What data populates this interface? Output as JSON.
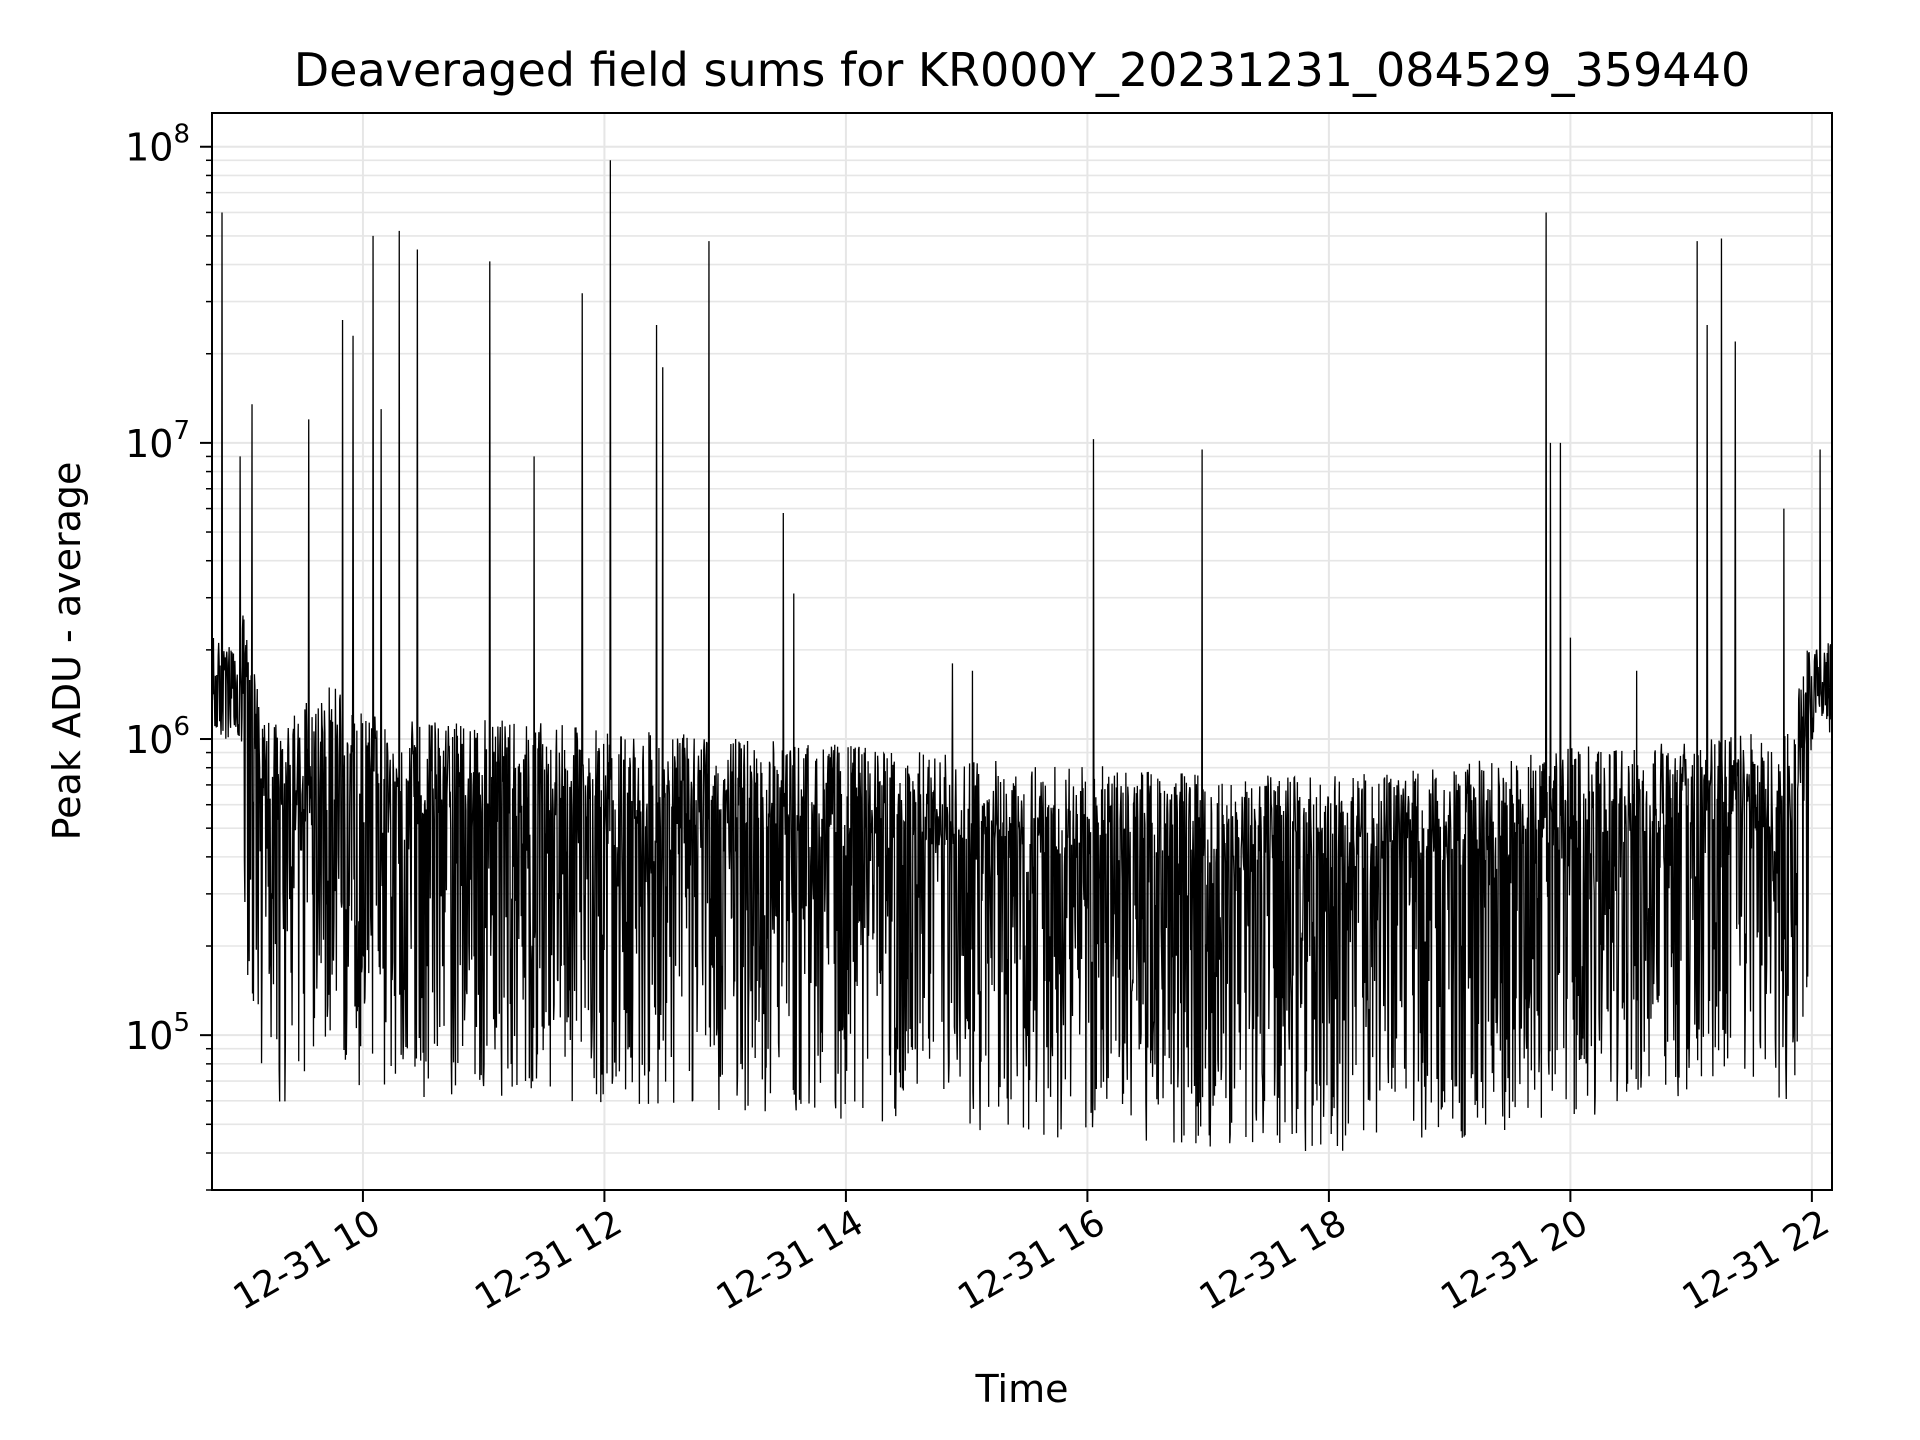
{
  "chart_data": {
    "type": "line",
    "title": "Deaveraged field sums for KR000Y_20231231_084529_359440",
    "xlabel": "Time",
    "ylabel": "Peak ADU - average",
    "yscale": "log",
    "xlim": [
      "12-31 08:45",
      "12-31 22:10"
    ],
    "ylim": [
      30000,
      130000000
    ],
    "grid": true,
    "x_ticks": [
      "12-31 10",
      "12-31 12",
      "12-31 14",
      "12-31 16",
      "12-31 18",
      "12-31 20",
      "12-31 22"
    ],
    "x_tick_hours": [
      10,
      12,
      14,
      16,
      18,
      20,
      22
    ],
    "y_ticks": [
      {
        "base": "10",
        "exp": "5",
        "value": 100000
      },
      {
        "base": "10",
        "exp": "6",
        "value": 1000000
      },
      {
        "base": "10",
        "exp": "7",
        "value": 10000000
      },
      {
        "base": "10",
        "exp": "8",
        "value": 100000000
      }
    ],
    "line_color": "#000000",
    "series": [
      {
        "x": [
          "12-31 08:45",
          "12-31 09:00",
          "12-31 09:10",
          "12-31 09:20",
          "12-31 09:30",
          "12-31 09:45",
          "12-31 10:00",
          "12-31 10:30",
          "12-31 11:00",
          "12-31 11:30",
          "12-31 12:00",
          "12-31 12:30",
          "12-31 13:00",
          "12-31 13:30",
          "12-31 14:00",
          "12-31 14:30",
          "12-31 15:00",
          "12-31 15:30",
          "12-31 16:00",
          "12-31 16:30",
          "12-31 17:00",
          "12-31 17:30",
          "12-31 18:00",
          "12-31 18:30",
          "12-31 19:00",
          "12-31 19:30",
          "12-31 20:00",
          "12-31 20:30",
          "12-31 21:00",
          "12-31 21:30",
          "12-31 21:50",
          "12-31 22:00",
          "12-31 22:10"
        ],
        "y": [
          1500000,
          1300000,
          650000,
          500000,
          650000,
          750000,
          580000,
          550000,
          560000,
          540000,
          520000,
          500000,
          490000,
          470000,
          460000,
          440000,
          420000,
          400000,
          390000,
          380000,
          370000,
          360000,
          360000,
          370000,
          390000,
          420000,
          450000,
          470000,
          480000,
          500000,
          500000,
          1400000,
          1500000
        ],
        "spikes": [
          {
            "x": "12-31 08:50",
            "y": 60000000
          },
          {
            "x": "12-31 08:59",
            "y": 9000000
          },
          {
            "x": "12-31 09:05",
            "y": 13500000
          },
          {
            "x": "12-31 09:33",
            "y": 12000000
          },
          {
            "x": "12-31 09:50",
            "y": 26000000
          },
          {
            "x": "12-31 09:55",
            "y": 23000000
          },
          {
            "x": "12-31 10:05",
            "y": 50000000
          },
          {
            "x": "12-31 10:09",
            "y": 13000000
          },
          {
            "x": "12-31 10:18",
            "y": 52000000
          },
          {
            "x": "12-31 10:27",
            "y": 45000000
          },
          {
            "x": "12-31 11:03",
            "y": 41000000
          },
          {
            "x": "12-31 11:25",
            "y": 9000000
          },
          {
            "x": "12-31 11:49",
            "y": 32000000
          },
          {
            "x": "12-31 12:03",
            "y": 90000000
          },
          {
            "x": "12-31 12:26",
            "y": 25000000
          },
          {
            "x": "12-31 12:29",
            "y": 18000000
          },
          {
            "x": "12-31 12:52",
            "y": 48000000
          },
          {
            "x": "12-31 13:29",
            "y": 5800000
          },
          {
            "x": "12-31 13:34",
            "y": 3100000
          },
          {
            "x": "12-31 14:53",
            "y": 1800000
          },
          {
            "x": "12-31 15:03",
            "y": 1700000
          },
          {
            "x": "12-31 16:03",
            "y": 10300000
          },
          {
            "x": "12-31 16:57",
            "y": 9500000
          },
          {
            "x": "12-31 19:48",
            "y": 60000000
          },
          {
            "x": "12-31 19:50",
            "y": 10000000
          },
          {
            "x": "12-31 19:55",
            "y": 10000000
          },
          {
            "x": "12-31 20:00",
            "y": 2200000
          },
          {
            "x": "12-31 20:33",
            "y": 1700000
          },
          {
            "x": "12-31 21:03",
            "y": 48000000
          },
          {
            "x": "12-31 21:08",
            "y": 25000000
          },
          {
            "x": "12-31 21:15",
            "y": 49000000
          },
          {
            "x": "12-31 21:22",
            "y": 22000000
          },
          {
            "x": "12-31 21:46",
            "y": 6000000
          },
          {
            "x": "12-31 22:04",
            "y": 9500000
          }
        ]
      }
    ]
  }
}
